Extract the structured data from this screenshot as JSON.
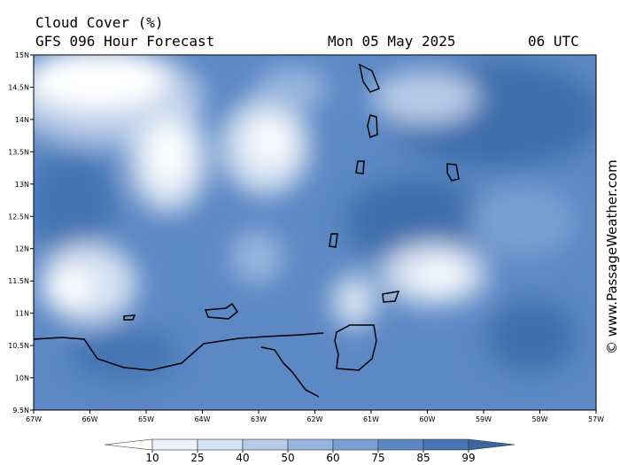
{
  "header": {
    "title": "Cloud Cover (%)",
    "subtitle": "GFS 096 Hour Forecast",
    "date": "Mon 05 May 2025",
    "time": "06 UTC",
    "credit": "© www.PassageWeather.com"
  },
  "map": {
    "lat_ticks": [
      {
        "value": 15,
        "label": "15N"
      },
      {
        "value": 14.5,
        "label": "14.5N"
      },
      {
        "value": 14,
        "label": "14N"
      },
      {
        "value": 13.5,
        "label": "13.5N"
      },
      {
        "value": 13,
        "label": "13N"
      },
      {
        "value": 12.5,
        "label": "12.5N"
      },
      {
        "value": 12,
        "label": "12N"
      },
      {
        "value": 11.5,
        "label": "11.5N"
      },
      {
        "value": 11,
        "label": "11N"
      },
      {
        "value": 10.5,
        "label": "10.5N"
      },
      {
        "value": 10,
        "label": "10N"
      },
      {
        "value": 9.5,
        "label": "9.5N"
      }
    ],
    "lon_ticks": [
      {
        "value": -67,
        "label": "67W"
      },
      {
        "value": -66,
        "label": "66W"
      },
      {
        "value": -65,
        "label": "65W"
      },
      {
        "value": -64,
        "label": "64W"
      },
      {
        "value": -63,
        "label": "63W"
      },
      {
        "value": -62,
        "label": "62W"
      },
      {
        "value": -61,
        "label": "61W"
      },
      {
        "value": -60,
        "label": "60W"
      },
      {
        "value": -59,
        "label": "59W"
      },
      {
        "value": -58,
        "label": "58W"
      },
      {
        "value": -57,
        "label": "57W"
      }
    ]
  },
  "colorbar": {
    "levels": [
      10,
      25,
      40,
      50,
      60,
      75,
      85,
      99
    ],
    "colors": [
      "#ffffff",
      "#edf2fa",
      "#d6e2f2",
      "#b8cce8",
      "#98b6dd",
      "#7aa0d2",
      "#5c88c4",
      "#4574b4",
      "#3a65a0"
    ]
  }
}
